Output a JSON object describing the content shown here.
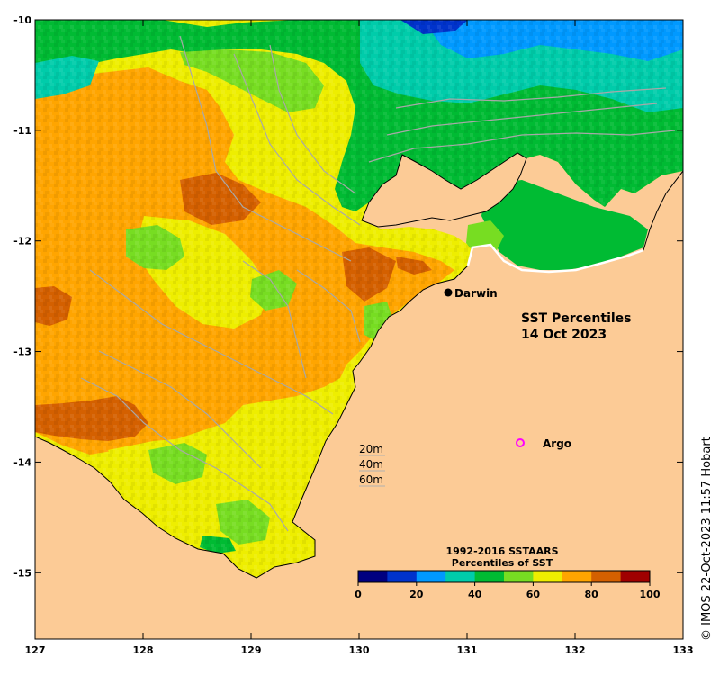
{
  "map": {
    "title_line1": "SST Percentiles",
    "title_line2": "14 Oct 2023",
    "x_ticks": [
      "127",
      "128",
      "129",
      "130",
      "131",
      "132",
      "133"
    ],
    "y_ticks": [
      "-10",
      "-11",
      "-12",
      "-13",
      "-14",
      "-15"
    ],
    "lon_range": [
      127,
      133
    ],
    "lat_range": [
      -15.6,
      -10
    ],
    "land_color": "#fccb96"
  },
  "places": {
    "darwin": {
      "label": "Darwin",
      "lon": 130.83,
      "lat": -12.45
    },
    "argo": {
      "label": "Argo",
      "lon": 131.5,
      "lat": -13.8,
      "marker_color": "#ff00ff"
    }
  },
  "depth_legend": [
    "20m",
    "40m",
    "60m"
  ],
  "colorbar": {
    "title_line1": "1992-2016 SSTAARS",
    "title_line2": "Percentiles of SST",
    "ticks": [
      "0",
      "20",
      "40",
      "60",
      "80",
      "100"
    ],
    "colors": [
      "#000080",
      "#0033cc",
      "#0099ff",
      "#00ccaa",
      "#00bb33",
      "#77dd22",
      "#eeee00",
      "#ffa500",
      "#d46000",
      "#a00000"
    ]
  },
  "credit": "© IMOS 22-Oct-2023 11:57 Hobart"
}
